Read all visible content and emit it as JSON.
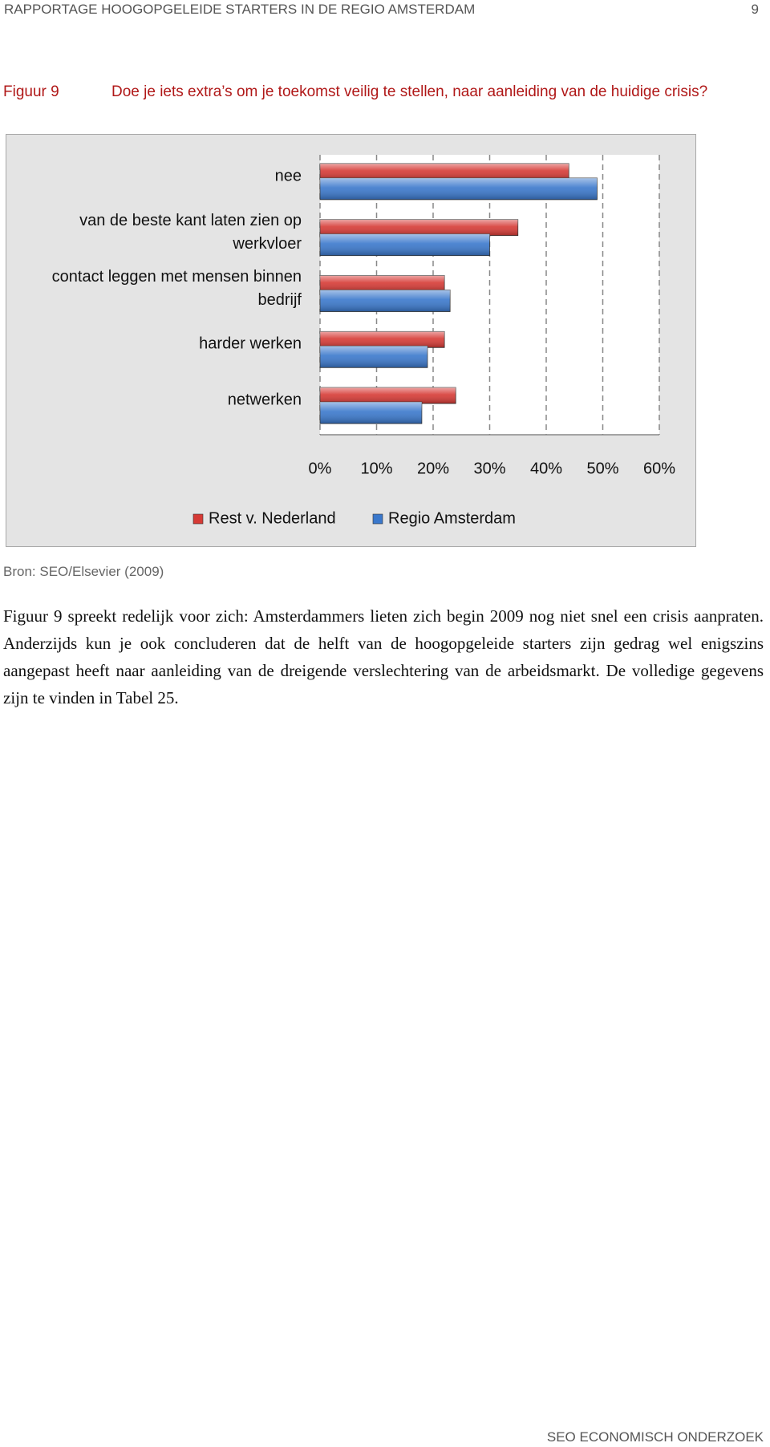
{
  "header": {
    "title": "RAPPORTAGE HOOGOPGELEIDE STARTERS IN DE REGIO AMSTERDAM",
    "page": "9"
  },
  "figure": {
    "label": "Figuur 9",
    "caption": "Doe je iets extra’s om je toekomst veilig te stellen, naar aanleiding van de huidige crisis?"
  },
  "chart_data": {
    "type": "hbar",
    "categories": [
      "nee",
      "van de beste kant laten zien op werkvloer",
      "contact leggen met mensen binnen bedrijf",
      "harder werken",
      "netwerken"
    ],
    "series": [
      {
        "name": "Rest v. Nederland",
        "color": "#d63a35",
        "values": [
          44,
          35,
          22,
          22,
          24
        ]
      },
      {
        "name": "Regio Amsterdam",
        "color": "#3a78cc",
        "values": [
          49,
          30,
          23,
          19,
          18
        ]
      }
    ],
    "xlim": [
      0,
      60
    ],
    "xticks": [
      {
        "value": 0,
        "label": "0%"
      },
      {
        "value": 10,
        "label": "10%"
      },
      {
        "value": 20,
        "label": "20%"
      },
      {
        "value": 30,
        "label": "30%"
      },
      {
        "value": 40,
        "label": "40%"
      },
      {
        "value": 50,
        "label": "50%"
      },
      {
        "value": 60,
        "label": "60%"
      }
    ],
    "grid": true,
    "legend": "bottom"
  },
  "source": "Bron: SEO/Elsevier (2009)",
  "body": "Figuur 9 spreekt redelijk voor zich: Amsterdammers lieten zich begin 2009 nog niet snel een crisis aanpraten. Anderzijds kun je ook concluderen dat de helft van de hoogopgeleide starters zijn gedrag wel enigszins aangepast heeft naar aanleiding van de dreigende verslechtering van de arbeidsmarkt.  De volledige gegevens zijn te vinden in Tabel 25.",
  "footer": "SEO ECONOMISCH ONDERZOEK"
}
